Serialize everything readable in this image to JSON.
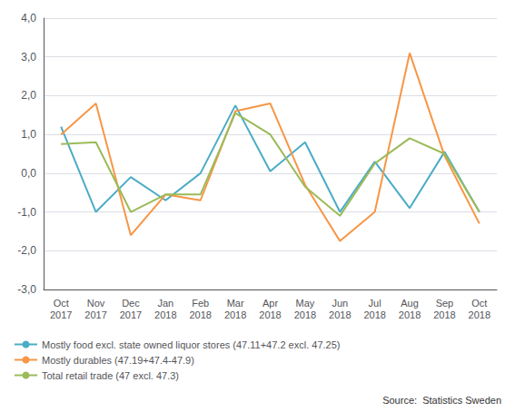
{
  "chart_data": {
    "type": "line",
    "categories": [
      "Oct\n2017",
      "Nov\n2017",
      "Dec\n2017",
      "Jan\n2018",
      "Feb\n2018",
      "Mar\n2018",
      "Apr\n2018",
      "May\n2018",
      "Jun\n2018",
      "Jul\n2018",
      "Aug\n2018",
      "Sep\n2018",
      "Oct\n2018"
    ],
    "series": [
      {
        "name": "Mostly food excl. state owned liquor stores (47.11+47.2 excl. 47.25)",
        "color": "#4bacc6",
        "values": [
          1.2,
          -1.0,
          -0.1,
          -0.7,
          0.0,
          1.75,
          0.05,
          0.8,
          -1.0,
          0.3,
          -0.9,
          0.55,
          -1.0
        ]
      },
      {
        "name": "Mostly durables (47.19+47.4-47.9)",
        "color": "#f79646",
        "values": [
          1.0,
          1.8,
          -1.6,
          -0.55,
          -0.7,
          1.6,
          1.8,
          -0.3,
          -1.75,
          -1.0,
          3.1,
          0.45,
          -1.3
        ]
      },
      {
        "name": "Total retail trade (47 excl. 47.3)",
        "color": "#9bbb59",
        "values": [
          0.75,
          0.8,
          -1.0,
          -0.55,
          -0.55,
          1.55,
          1.0,
          -0.35,
          -1.1,
          0.25,
          0.9,
          0.5,
          -1.0
        ]
      }
    ],
    "ylim": [
      -3.0,
      4.0
    ],
    "yticks": [
      {
        "value": -3.0,
        "label": "-3,0"
      },
      {
        "value": -2.0,
        "label": "-2,0"
      },
      {
        "value": -1.0,
        "label": "-1,0"
      },
      {
        "value": 0.0,
        "label": "0,0"
      },
      {
        "value": 1.0,
        "label": "1,0"
      },
      {
        "value": 2.0,
        "label": "2,0"
      },
      {
        "value": 3.0,
        "label": "3,0"
      },
      {
        "value": 4.0,
        "label": "4,0"
      }
    ],
    "grid": true,
    "legend": "lower left",
    "annotations": [
      "Source:  Statistics Sweden"
    ]
  }
}
